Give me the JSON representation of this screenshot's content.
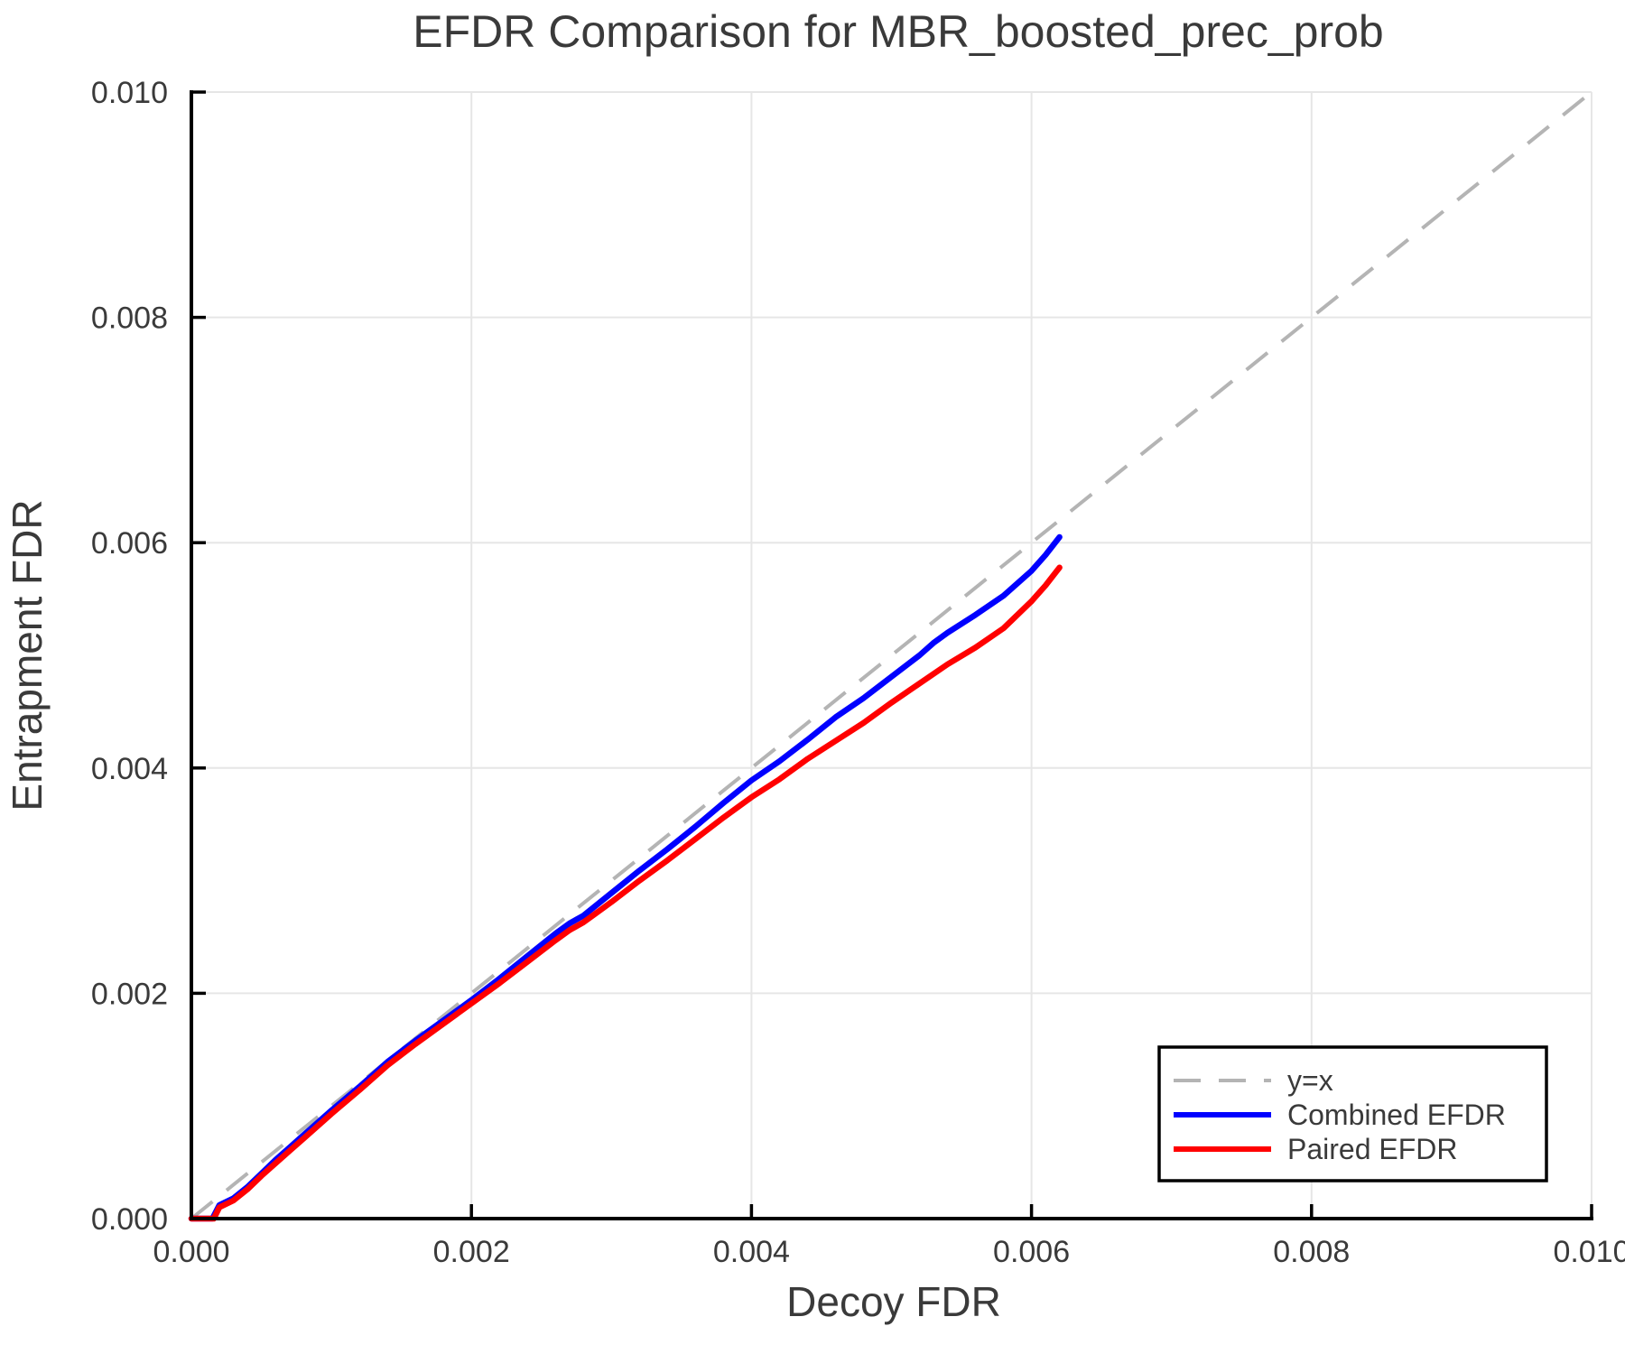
{
  "chart_data": {
    "type": "line",
    "title": "EFDR Comparison for MBR_boosted_prec_prob",
    "xlabel": "Decoy FDR",
    "ylabel": "Entrapment FDR",
    "xlim": [
      0.0,
      0.01
    ],
    "ylim": [
      0.0,
      0.01
    ],
    "xticks": [
      0.0,
      0.002,
      0.004,
      0.006,
      0.008,
      0.01
    ],
    "xtick_labels": [
      "0.000",
      "0.002",
      "0.004",
      "0.006",
      "0.008",
      "0.010"
    ],
    "yticks": [
      0.0,
      0.002,
      0.004,
      0.006,
      0.008,
      0.01
    ],
    "ytick_labels": [
      "0.000",
      "0.002",
      "0.004",
      "0.006",
      "0.008",
      "0.010"
    ],
    "grid": true,
    "legend_position": "lower right",
    "styles": {
      "text_color": "#3a3a3a",
      "grid_color": "#e6e6e6",
      "spine_color": "#000000",
      "background": "#ffffff",
      "legend_border": "#000000",
      "legend_background": "#ffffff"
    },
    "series": [
      {
        "name": "y=x",
        "color": "#b4b4b4",
        "style": "dashed",
        "width": 4,
        "points": [
          [
            0.0,
            0.0
          ],
          [
            0.01,
            0.01
          ]
        ]
      },
      {
        "name": "Combined EFDR",
        "color": "#0000ff",
        "style": "solid",
        "width": 6.5,
        "points": [
          [
            0.0,
            0.0
          ],
          [
            0.00015,
            0.0
          ],
          [
            0.0002,
            0.00012
          ],
          [
            0.0003,
            0.00018
          ],
          [
            0.0004,
            0.00028
          ],
          [
            0.0005,
            0.0004
          ],
          [
            0.0006,
            0.00052
          ],
          [
            0.0007,
            0.00063
          ],
          [
            0.0008,
            0.00074
          ],
          [
            0.0009,
            0.00085
          ],
          [
            0.001,
            0.00096
          ],
          [
            0.0012,
            0.00117
          ],
          [
            0.0014,
            0.00139
          ],
          [
            0.0016,
            0.00158
          ],
          [
            0.0018,
            0.00176
          ],
          [
            0.002,
            0.00194
          ],
          [
            0.0022,
            0.00213
          ],
          [
            0.0024,
            0.00233
          ],
          [
            0.0026,
            0.00253
          ],
          [
            0.0027,
            0.00262
          ],
          [
            0.0028,
            0.00269
          ],
          [
            0.003,
            0.00289
          ],
          [
            0.0032,
            0.00309
          ],
          [
            0.0034,
            0.00328
          ],
          [
            0.0036,
            0.00348
          ],
          [
            0.0038,
            0.00369
          ],
          [
            0.004,
            0.00389
          ],
          [
            0.0042,
            0.00406
          ],
          [
            0.0044,
            0.00425
          ],
          [
            0.0046,
            0.00445
          ],
          [
            0.0048,
            0.00462
          ],
          [
            0.005,
            0.00481
          ],
          [
            0.0052,
            0.005
          ],
          [
            0.0053,
            0.00511
          ],
          [
            0.0054,
            0.0052
          ],
          [
            0.0056,
            0.00536
          ],
          [
            0.0058,
            0.00553
          ],
          [
            0.006,
            0.00575
          ],
          [
            0.0061,
            0.00589
          ],
          [
            0.0062,
            0.00605
          ]
        ]
      },
      {
        "name": "Paired EFDR",
        "color": "#ff0000",
        "style": "solid",
        "width": 6.5,
        "points": [
          [
            0.0,
            0.0
          ],
          [
            0.00016,
            0.0
          ],
          [
            0.0002,
            0.0001
          ],
          [
            0.0003,
            0.00016
          ],
          [
            0.0004,
            0.00026
          ],
          [
            0.0005,
            0.00038
          ],
          [
            0.0006,
            0.00049
          ],
          [
            0.0007,
            0.0006
          ],
          [
            0.0008,
            0.00071
          ],
          [
            0.0009,
            0.00082
          ],
          [
            0.001,
            0.00093
          ],
          [
            0.0012,
            0.00114
          ],
          [
            0.0014,
            0.00136
          ],
          [
            0.0016,
            0.00155
          ],
          [
            0.0018,
            0.00173
          ],
          [
            0.002,
            0.00191
          ],
          [
            0.0022,
            0.00209
          ],
          [
            0.0024,
            0.00228
          ],
          [
            0.0026,
            0.00247
          ],
          [
            0.0027,
            0.00256
          ],
          [
            0.0028,
            0.00263
          ],
          [
            0.003,
            0.00281
          ],
          [
            0.0032,
            0.003
          ],
          [
            0.0034,
            0.00318
          ],
          [
            0.0036,
            0.00337
          ],
          [
            0.0038,
            0.00356
          ],
          [
            0.004,
            0.00374
          ],
          [
            0.0042,
            0.0039
          ],
          [
            0.0044,
            0.00408
          ],
          [
            0.0046,
            0.00424
          ],
          [
            0.0048,
            0.0044
          ],
          [
            0.005,
            0.00458
          ],
          [
            0.0052,
            0.00475
          ],
          [
            0.0054,
            0.00492
          ],
          [
            0.0056,
            0.00507
          ],
          [
            0.0058,
            0.00524
          ],
          [
            0.006,
            0.00548
          ],
          [
            0.0061,
            0.00562
          ],
          [
            0.0062,
            0.00578
          ]
        ]
      }
    ]
  }
}
